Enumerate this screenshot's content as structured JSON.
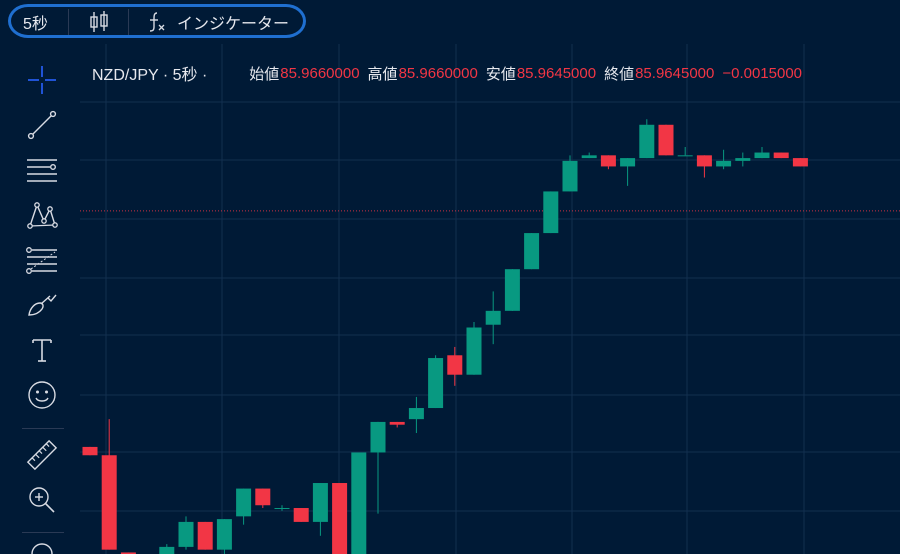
{
  "toolbar": {
    "interval": "5秒",
    "chart_type_icon": "candlestick-icon",
    "indicators_icon": "fx-icon",
    "indicators_label": "インジケーター"
  },
  "legend": {
    "symbol": "NZD/JPY · 5秒 ·",
    "open_label": "始値",
    "open_value": "85.9660000",
    "high_label": "高値",
    "high_value": "85.9660000",
    "low_label": "安値",
    "low_value": "85.9645000",
    "close_label": "終値",
    "close_value": "85.9645000",
    "change_value": "−0.0015000"
  },
  "left_tools": [
    {
      "name": "crosshair-icon"
    },
    {
      "name": "trend-line-icon"
    },
    {
      "name": "horizontal-lines-icon"
    },
    {
      "name": "pattern-icon"
    },
    {
      "name": "fib-retracement-icon"
    },
    {
      "name": "brush-icon"
    },
    {
      "name": "text-icon"
    },
    {
      "name": "emoji-icon"
    },
    {
      "name": "ruler-icon"
    },
    {
      "name": "zoom-in-icon"
    }
  ],
  "colors": {
    "background": "#001a36",
    "up": "#089981",
    "down": "#f23645",
    "grid": "#12304f",
    "price_line": "#f23645",
    "annotation": "#1f6fd0"
  },
  "chart_data": {
    "type": "candlestick",
    "title": "NZD/JPY · 5秒 ·",
    "candles": [
      {
        "o": 85.956,
        "h": 85.956,
        "l": 85.9557,
        "c": 85.9557
      },
      {
        "o": 85.9557,
        "h": 85.957,
        "l": 85.9523,
        "c": 85.9523
      },
      {
        "o": 85.9522,
        "h": 85.9522,
        "l": 85.952,
        "c": 85.9521
      },
      {
        "o": 85.952,
        "h": 85.9521,
        "l": 85.9519,
        "c": 85.952
      },
      {
        "o": 85.952,
        "h": 85.9525,
        "l": 85.9519,
        "c": 85.9524
      },
      {
        "o": 85.9524,
        "h": 85.9535,
        "l": 85.9523,
        "c": 85.9533
      },
      {
        "o": 85.9533,
        "h": 85.9533,
        "l": 85.9523,
        "c": 85.9523
      },
      {
        "o": 85.9523,
        "h": 85.9534,
        "l": 85.9521,
        "c": 85.9534
      },
      {
        "o": 85.9535,
        "h": 85.9545,
        "l": 85.9532,
        "c": 85.9545
      },
      {
        "o": 85.9545,
        "h": 85.9545,
        "l": 85.9538,
        "c": 85.9539
      },
      {
        "o": 85.9538,
        "h": 85.9539,
        "l": 85.9537,
        "c": 85.9538
      },
      {
        "o": 85.9538,
        "h": 85.9538,
        "l": 85.9533,
        "c": 85.9533
      },
      {
        "o": 85.9533,
        "h": 85.9547,
        "l": 85.9528,
        "c": 85.9547
      },
      {
        "o": 85.9547,
        "h": 85.9547,
        "l": 85.9518,
        "c": 85.9518
      },
      {
        "o": 85.9517,
        "h": 85.9558,
        "l": 85.9517,
        "c": 85.9558
      },
      {
        "o": 85.9558,
        "h": 85.9569,
        "l": 85.9536,
        "c": 85.9569
      },
      {
        "o": 85.9569,
        "h": 85.9569,
        "l": 85.9567,
        "c": 85.9568
      },
      {
        "o": 85.957,
        "h": 85.9578,
        "l": 85.9565,
        "c": 85.9574
      },
      {
        "o": 85.9574,
        "h": 85.9593,
        "l": 85.9574,
        "c": 85.9592
      },
      {
        "o": 85.9593,
        "h": 85.9596,
        "l": 85.9582,
        "c": 85.9586
      },
      {
        "o": 85.9586,
        "h": 85.9605,
        "l": 85.9586,
        "c": 85.9603
      },
      {
        "o": 85.9604,
        "h": 85.9616,
        "l": 85.9597,
        "c": 85.9609
      },
      {
        "o": 85.9609,
        "h": 85.9624,
        "l": 85.9609,
        "c": 85.9624
      },
      {
        "o": 85.9624,
        "h": 85.9637,
        "l": 85.9624,
        "c": 85.9637
      },
      {
        "o": 85.9637,
        "h": 85.9652,
        "l": 85.9637,
        "c": 85.9652
      },
      {
        "o": 85.9652,
        "h": 85.9665,
        "l": 85.9652,
        "c": 85.9663
      },
      {
        "o": 85.9664,
        "h": 85.9666,
        "l": 85.9664,
        "c": 85.9665
      },
      {
        "o": 85.9665,
        "h": 85.9665,
        "l": 85.966,
        "c": 85.9661
      },
      {
        "o": 85.9661,
        "h": 85.9664,
        "l": 85.9654,
        "c": 85.9664
      },
      {
        "o": 85.9664,
        "h": 85.9678,
        "l": 85.9664,
        "c": 85.9676
      },
      {
        "o": 85.9676,
        "h": 85.9676,
        "l": 85.9665,
        "c": 85.9665
      },
      {
        "o": 85.9665,
        "h": 85.9668,
        "l": 85.9665,
        "c": 85.9665
      },
      {
        "o": 85.9665,
        "h": 85.9665,
        "l": 85.9657,
        "c": 85.9661
      },
      {
        "o": 85.9661,
        "h": 85.9667,
        "l": 85.966,
        "c": 85.9663
      },
      {
        "o": 85.9663,
        "h": 85.9666,
        "l": 85.9661,
        "c": 85.9664
      },
      {
        "o": 85.9664,
        "h": 85.9668,
        "l": 85.9664,
        "c": 85.9666
      },
      {
        "o": 85.9666,
        "h": 85.9666,
        "l": 85.9664,
        "c": 85.9664
      },
      {
        "o": 85.9664,
        "h": 85.9664,
        "l": 85.9661,
        "c": 85.9661
      }
    ],
    "current_price": 85.9645,
    "grid": true
  }
}
